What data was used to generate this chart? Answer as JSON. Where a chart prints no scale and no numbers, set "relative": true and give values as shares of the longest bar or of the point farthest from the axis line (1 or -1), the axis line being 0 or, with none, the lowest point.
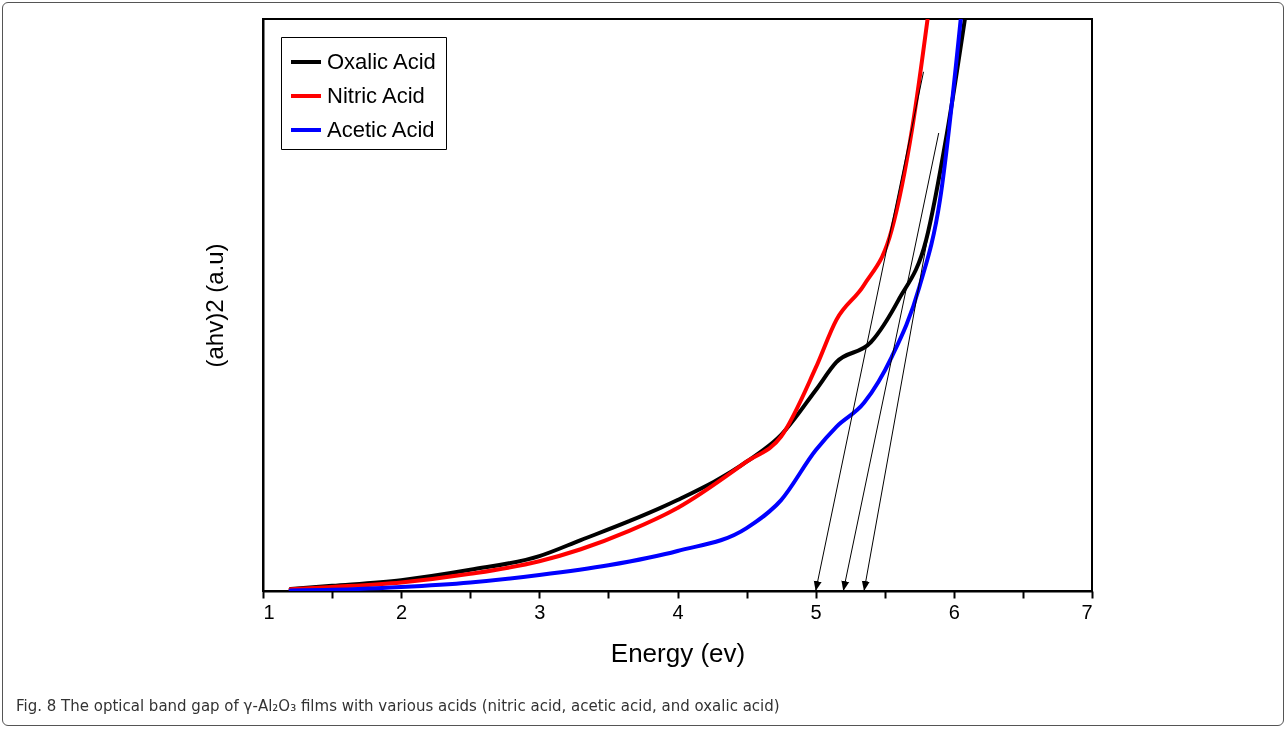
{
  "chart_data": {
    "type": "line",
    "xlabel": "Energy (ev)",
    "ylabel": "(ahv)2 (a.u)",
    "relative": true,
    "legend": "top left",
    "grid": false,
    "xlim": [
      1,
      7
    ],
    "xticks": [
      1,
      {
        "value": 1.5,
        "label": null
      },
      2,
      {
        "value": 2.5,
        "label": null
      },
      3,
      {
        "value": 3.5,
        "label": null
      },
      4,
      {
        "value": 4.5,
        "label": null
      },
      5,
      {
        "value": 5.5,
        "label": null
      },
      6,
      {
        "value": 6.5,
        "label": null
      },
      7
    ],
    "series": [
      {
        "name": "Oxalic Acid",
        "color": "#000000",
        "x": [
          1.2,
          1.5,
          2,
          2.5,
          3,
          3.3,
          3.65,
          4,
          4.5,
          4.75,
          5,
          5.15,
          5.4,
          5.6,
          5.8,
          5.95,
          6.08
        ],
        "values": [
          0.0035,
          0.009,
          0.019,
          0.037,
          0.061,
          0.089,
          0.122,
          0.159,
          0.226,
          0.273,
          0.351,
          0.4,
          0.435,
          0.509,
          0.614,
          0.8,
          1
        ]
      },
      {
        "name": "Nitric Acid",
        "color": "#ff0000",
        "x": [
          1.2,
          1.5,
          2,
          2.5,
          3,
          3.3,
          3.65,
          4,
          4.5,
          4.75,
          5,
          5.15,
          5.35,
          5.55,
          5.7,
          5.81
        ],
        "values": [
          0.003,
          0.007,
          0.015,
          0.03,
          0.052,
          0.073,
          0.105,
          0.145,
          0.226,
          0.27,
          0.39,
          0.474,
          0.535,
          0.631,
          0.811,
          1
        ]
      },
      {
        "name": "Acetic Acid",
        "color": "#0000ff",
        "x": [
          1.2,
          1.5,
          2,
          2.5,
          3,
          3.5,
          4,
          4.5,
          4.75,
          5,
          5.15,
          5.35,
          5.55,
          5.75,
          5.9,
          6.05
        ],
        "values": [
          0.001,
          0.002,
          0.007,
          0.015,
          0.028,
          0.045,
          0.07,
          0.11,
          0.159,
          0.246,
          0.287,
          0.329,
          0.409,
          0.531,
          0.684,
          1
        ]
      },
      {
        "type": "line",
        "color": "#000000",
        "x": [
          5.78,
          5.0
        ],
        "values": [
          0.907,
          0
        ]
      },
      {
        "type": "line",
        "color": "#000000",
        "x": [
          5.89,
          5.2
        ],
        "values": [
          0.8,
          0
        ]
      },
      {
        "type": "line",
        "color": "#000000",
        "x": [
          5.95,
          5.35
        ],
        "values": [
          0.806,
          0
        ]
      }
    ],
    "annotations": [
      "Fig. 8 The optical band gap of γ-Al₂O₃ films with various acids (nitric acid, acetic acid, and oxalic acid)"
    ]
  }
}
